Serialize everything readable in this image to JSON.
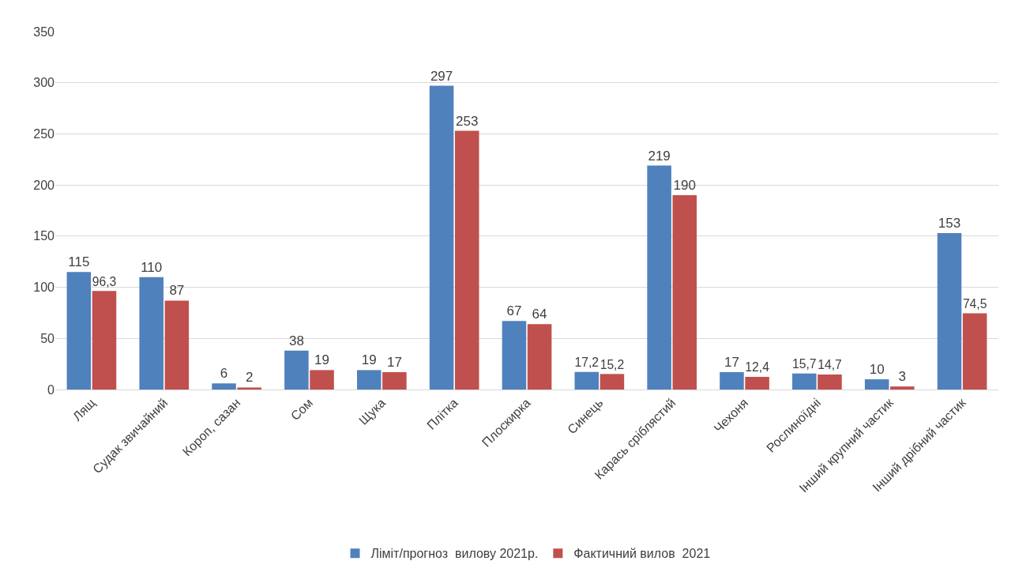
{
  "chart_data": {
    "type": "bar",
    "categories": [
      "Лящ",
      "Судак звичайний",
      "Короп, сазан",
      "Сом",
      "Щука",
      "Плітка",
      "Плоскирка",
      "Синець",
      "Карась сріблястий",
      "Чехоня",
      "Рослиноїдні",
      "Інший крупний частик",
      "Інший дрібний частик"
    ],
    "series": [
      {
        "name": "Ліміт/прогноз  вилову 2021р.",
        "color": "#4f81bd",
        "values": [
          115,
          110,
          6,
          38,
          19,
          297,
          67,
          17.2,
          219,
          17,
          15.7,
          10,
          153
        ],
        "value_labels": [
          "115",
          "110",
          "6",
          "38",
          "19",
          "297",
          "67",
          "17,2",
          "219",
          "17",
          "15,7",
          "10",
          "153"
        ]
      },
      {
        "name": "Фактичний вилов  2021",
        "color": "#c0504d",
        "values": [
          96.3,
          87,
          2,
          19,
          17,
          253,
          64,
          15.2,
          190,
          12.4,
          14.7,
          3,
          74.5
        ],
        "value_labels": [
          "96,3",
          "87",
          "2",
          "19",
          "17",
          "253",
          "64",
          "15,2",
          "190",
          "12,4",
          "14,7",
          "3",
          "74,5"
        ]
      }
    ],
    "ylim": [
      0,
      350
    ],
    "yticks": [
      0,
      50,
      100,
      150,
      200,
      250,
      300,
      350
    ],
    "grid": "y",
    "legend": "bottom"
  }
}
